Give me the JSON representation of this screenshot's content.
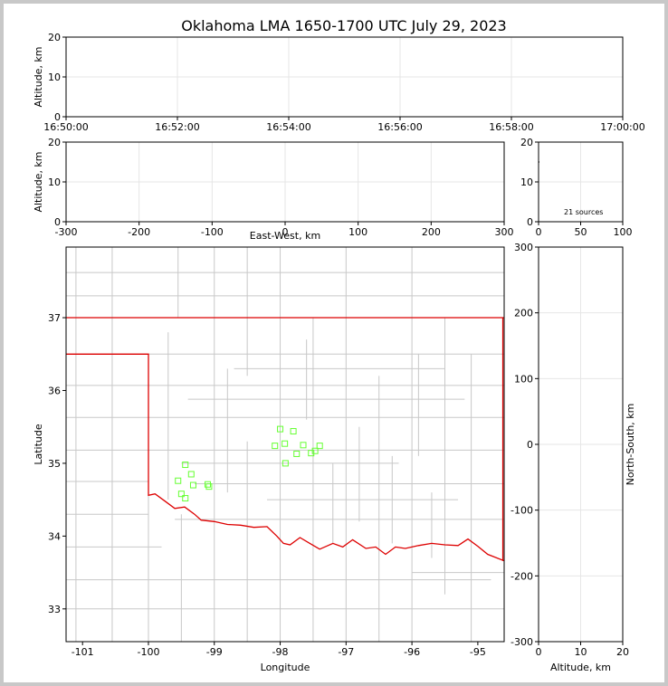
{
  "figure": {
    "title": "Oklahoma LMA 1650-1700 UTC July 29, 2023",
    "source_count_label": "21 sources"
  },
  "colors": {
    "background": "#ffffff",
    "frame": "#c8c8c8",
    "grid": "#e6e6e6",
    "county_lines": "#c8c8c8",
    "state_lines": "#dd0000",
    "sources": "#66ff33"
  },
  "chart_data": [
    {
      "id": "time-altitude",
      "type": "scatter",
      "title": "",
      "xlabel": "",
      "ylabel": "Altitude, km",
      "x_ticks": [
        "16:50:00",
        "16:52:00",
        "16:54:00",
        "16:56:00",
        "16:58:00",
        "17:00:00"
      ],
      "xlim": [
        "16:50:00",
        "17:00:00"
      ],
      "ylim": [
        0,
        20
      ],
      "y_ticks": [
        0,
        10,
        20
      ],
      "grid": true,
      "points": []
    },
    {
      "id": "eastwest-altitude",
      "type": "scatter",
      "xlabel": "East-West, km",
      "ylabel": "Altitude, km",
      "xlim": [
        -300,
        300
      ],
      "x_ticks": [
        -300,
        -200,
        -100,
        0,
        100,
        200,
        300
      ],
      "ylim": [
        0,
        20
      ],
      "y_ticks": [
        0,
        10,
        20
      ],
      "grid": true,
      "points": []
    },
    {
      "id": "altitude-histogram",
      "type": "bar",
      "xlabel": "",
      "ylabel": "",
      "xlim": [
        0,
        100
      ],
      "x_ticks": [
        0,
        50,
        100
      ],
      "ylim": [
        0,
        20
      ],
      "y_ticks": [
        0,
        10,
        20
      ],
      "grid": true,
      "points": [
        [
          1,
          15
        ]
      ]
    },
    {
      "id": "plan-view",
      "type": "scatter",
      "xlabel": "Longitude",
      "ylabel": "Latitude",
      "xlim": [
        -101.25,
        -94.6
      ],
      "x_ticks": [
        -101,
        -100,
        -99,
        -98,
        -97,
        -96,
        -95
      ],
      "ylim": [
        32.55,
        37.97
      ],
      "y_ticks": [
        33,
        34,
        35,
        36,
        37
      ],
      "grid": false,
      "points": [
        [
          -98.0,
          35.47
        ],
        [
          -97.8,
          35.44
        ],
        [
          -98.08,
          35.24
        ],
        [
          -97.93,
          35.27
        ],
        [
          -97.65,
          35.25
        ],
        [
          -97.75,
          35.13
        ],
        [
          -97.53,
          35.14
        ],
        [
          -97.4,
          35.24
        ],
        [
          -97.47,
          35.17
        ],
        [
          -97.92,
          35.0
        ],
        [
          -99.44,
          34.98
        ],
        [
          -99.35,
          34.85
        ],
        [
          -99.55,
          34.76
        ],
        [
          -99.32,
          34.7
        ],
        [
          -99.1,
          34.71
        ],
        [
          -99.08,
          34.68
        ],
        [
          -99.5,
          34.58
        ],
        [
          -99.44,
          34.52
        ]
      ]
    },
    {
      "id": "northsouth-altitude",
      "type": "scatter",
      "xlabel": "Altitude, km",
      "ylabel": "North-South, km",
      "xlim": [
        0,
        20
      ],
      "x_ticks": [
        0,
        10,
        20
      ],
      "ylim": [
        -300,
        300
      ],
      "y_ticks": [
        -300,
        -200,
        -100,
        0,
        100,
        200,
        300
      ],
      "grid": true,
      "points": []
    }
  ]
}
